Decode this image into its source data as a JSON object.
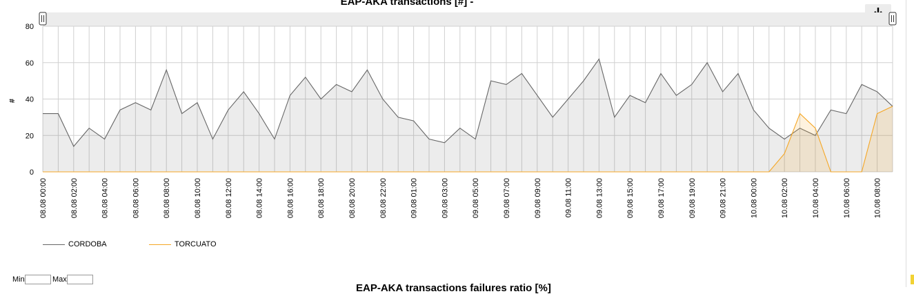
{
  "chart_data": {
    "type": "area",
    "title": "EAP-AKA transactions [#] -",
    "ylabel": "#",
    "xlabel": "",
    "ylim": [
      0,
      80
    ],
    "yticks": [
      0,
      20,
      40,
      60,
      80
    ],
    "grid": true,
    "legend_position": "bottom-left",
    "x": [
      "08.08 00:00",
      "08.08 01:00",
      "08.08 02:00",
      "08.08 03:00",
      "08.08 04:00",
      "08.08 05:00",
      "08.08 06:00",
      "08.08 07:00",
      "08.08 08:00",
      "08.08 09:00",
      "08.08 10:00",
      "08.08 11:00",
      "08.08 12:00",
      "08.08 13:00",
      "08.08 14:00",
      "08.08 15:00",
      "08.08 16:00",
      "08.08 17:00",
      "08.08 18:00",
      "08.08 19:00",
      "08.08 20:00",
      "08.08 21:00",
      "08.08 22:00",
      "08.08 23:00",
      "09.08 01:00",
      "09.08 02:00",
      "09.08 03:00",
      "09.08 04:00",
      "09.08 05:00",
      "09.08 06:00",
      "09.08 07:00",
      "09.08 08:00",
      "09.08 09:00",
      "09.08 10:00",
      "09.08 11:00",
      "09.08 12:00",
      "09.08 13:00",
      "09.08 14:00",
      "09.08 15:00",
      "09.08 16:00",
      "09.08 17:00",
      "09.08 18:00",
      "09.08 19:00",
      "09.08 20:00",
      "09.08 21:00",
      "09.08 22:00",
      "10.08 00:00",
      "10.08 01:00",
      "10.08 02:00",
      "10.08 03:00",
      "10.08 04:00",
      "10.08 05:00",
      "10.08 06:00",
      "10.08 07:00",
      "10.08 08:00",
      "10.08 09:00"
    ],
    "tick_labels": [
      "08.08 00:00",
      "08.08 02:00",
      "08.08 04:00",
      "08.08 06:00",
      "08.08 08:00",
      "08.08 10:00",
      "08.08 12:00",
      "08.08 14:00",
      "08.08 16:00",
      "08.08 18:00",
      "08.08 20:00",
      "08.08 22:00",
      "09.08 01:00",
      "09.08 03:00",
      "09.08 05:00",
      "09.08 07:00",
      "09.08 09:00",
      "09.08 11:00",
      "09.08 13:00",
      "09.08 15:00",
      "09.08 17:00",
      "09.08 19:00",
      "09.08 21:00",
      "10.08 00:00",
      "10.08 02:00",
      "10.08 04:00",
      "10.08 06:00",
      "10.08 08:00"
    ],
    "series": [
      {
        "name": "CORDOBA",
        "color": "#666666",
        "values": [
          32,
          32,
          14,
          24,
          18,
          34,
          38,
          34,
          56,
          32,
          38,
          18,
          34,
          44,
          32,
          18,
          42,
          52,
          40,
          48,
          44,
          56,
          40,
          30,
          28,
          18,
          16,
          24,
          18,
          50,
          48,
          54,
          42,
          30,
          40,
          50,
          62,
          30,
          42,
          38,
          54,
          42,
          48,
          60,
          44,
          54,
          34,
          24,
          18,
          24,
          20,
          34,
          32,
          48,
          44,
          36
        ]
      },
      {
        "name": "TORCUATO",
        "color": "#f5a623",
        "values": [
          0,
          0,
          0,
          0,
          0,
          0,
          0,
          0,
          0,
          0,
          0,
          0,
          0,
          0,
          0,
          0,
          0,
          0,
          0,
          0,
          0,
          0,
          0,
          0,
          0,
          0,
          0,
          0,
          0,
          0,
          0,
          0,
          0,
          0,
          0,
          0,
          0,
          0,
          0,
          0,
          0,
          0,
          0,
          0,
          0,
          0,
          0,
          0,
          10,
          32,
          24,
          0,
          0,
          0,
          32,
          36
        ]
      }
    ]
  },
  "toolbar": {
    "download_icon": "download-icon"
  },
  "range": {
    "min_label": "Min",
    "max_label": "Max",
    "min_value": "",
    "max_value": ""
  },
  "next_chart": {
    "title": "EAP-AKA transactions failures ratio [%]"
  }
}
